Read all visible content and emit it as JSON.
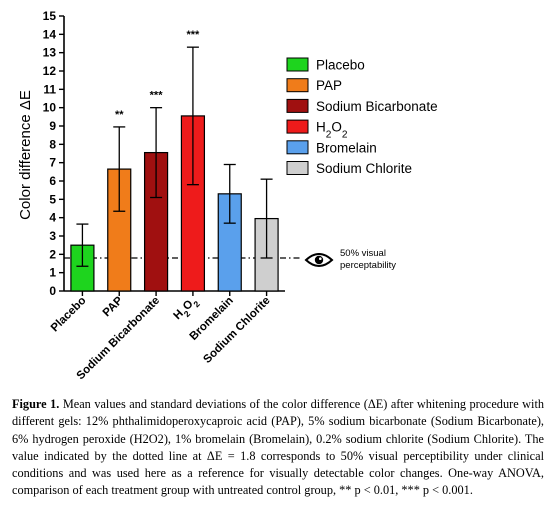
{
  "chart_data": {
    "type": "bar",
    "ylabel": "Color difference ΔE",
    "ylim": [
      0,
      15
    ],
    "yticks": [
      "0",
      "1",
      "2",
      "3",
      "4",
      "5",
      "6",
      "7",
      "8",
      "9",
      "10",
      "11",
      "12",
      "13",
      "14",
      "15"
    ],
    "categories": [
      "Placebo",
      "PAP",
      "Sodium Bicarbonate",
      "H2O2",
      "Bromelain",
      "Sodium Chlorite"
    ],
    "values": [
      2.5,
      6.65,
      7.55,
      9.55,
      5.3,
      3.95
    ],
    "error_sd": [
      1.15,
      2.3,
      2.45,
      3.75,
      1.6,
      2.15
    ],
    "significance": [
      "",
      "**",
      "***",
      "***",
      "",
      ""
    ],
    "colors": [
      "#1ed41e",
      "#f07c1a",
      "#a01010",
      "#ee1b1b",
      "#5aa0ec",
      "#cfcfcf"
    ],
    "legend": [
      "Placebo",
      "PAP",
      "Sodium Bicarbonate",
      "H2O2",
      "Bromelain",
      "Sodium Chlorite"
    ],
    "legend_position": "right",
    "reference_line": {
      "y": 1.8,
      "style": "dash-dot",
      "label_line1": "50% visual",
      "label_line2": "perceptability",
      "icon": "eye-icon"
    },
    "grid": false
  },
  "caption": {
    "label": "Figure 1.",
    "text": "Mean values and standard deviations of the color difference (ΔE) after whitening procedure with different gels: 12% phthalimidoperoxycaproic acid (PAP), 5% sodium bicarbonate (Sodium Bicarbonate), 6% hydrogen peroxide (H2O2), 1% bromelain (Bromelain), 0.2% sodium chlorite (Sodium Chlorite). The value indicated by the dotted line at ΔE = 1.8 corresponds to 50% visual perceptibility under clinical conditions and was used here as a reference for visually detectable color changes. One-way ANOVA, comparison of each treatment group with untreated control group, ** p < 0.01, *** p < 0.001."
  }
}
